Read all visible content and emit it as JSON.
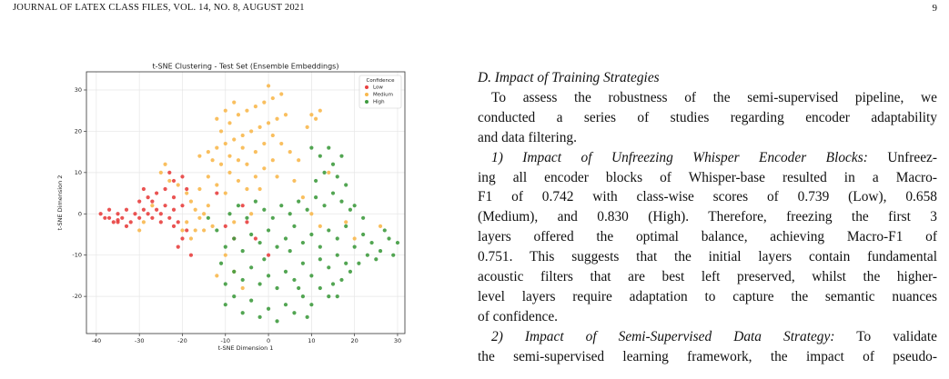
{
  "header": {
    "journal": "JOURNAL OF LATEX CLASS FILES, VOL. 14, NO. 8, AUGUST 2021",
    "page_number": "9"
  },
  "chart_data": {
    "type": "scatter",
    "title": "t-SNE Clustering - Test Set (Ensemble Embeddings)",
    "x_label": "t-SNE Dimension 1",
    "y_label": "t-SNE Dimension 2",
    "xlim": [
      -42.3,
      31.7
    ],
    "ylim": [
      -29,
      34.4
    ],
    "xticks": [
      -40,
      -30,
      -20,
      -10,
      0,
      10,
      20,
      30
    ],
    "yticks": [
      -20,
      -10,
      0,
      10,
      20,
      30
    ],
    "grid": true,
    "legend_title": "Confidence",
    "legend_loc": "upper right",
    "series": [
      {
        "name": "Low",
        "color": "#e8403f",
        "x": [
          -39,
          -38,
          -37,
          -36,
          -35,
          -34,
          -33,
          -32,
          -31,
          -37,
          -35,
          -33,
          -30,
          -29,
          -28,
          -27,
          -26,
          -25,
          -24,
          -23,
          -22,
          -30,
          -28,
          -26,
          -24,
          -22,
          -20,
          -21,
          -19,
          -20,
          -22,
          -25,
          -29,
          -27,
          -23,
          -22,
          -20,
          -19,
          -18,
          -21,
          -12,
          -10,
          -8,
          -5,
          -3,
          0,
          -6,
          -35
        ],
        "values": [
          0,
          -1,
          1,
          -2,
          0,
          -1,
          1,
          -2,
          0,
          -1,
          -2,
          -3,
          -1,
          1,
          0,
          -1,
          1,
          0,
          2,
          -1,
          1,
          3,
          4,
          5,
          6,
          4,
          2,
          -2,
          -4,
          -6,
          -3,
          -2,
          6,
          3,
          10,
          8,
          9,
          6,
          -10,
          -8,
          5,
          -3,
          -6,
          -2,
          -6,
          -10,
          2,
          -1.5
        ]
      },
      {
        "name": "Medium",
        "color": "#f8b84e",
        "x": [
          -25,
          -24,
          -23,
          -21,
          -19,
          -18,
          -17,
          -16,
          -17,
          -19,
          -20,
          -18,
          -15,
          -14,
          -16,
          -13,
          -27,
          -29,
          -30,
          -16,
          -14,
          -12,
          -10,
          -8,
          -6,
          -4,
          -2,
          0,
          2,
          4,
          -11,
          -9,
          -7,
          -5,
          -3,
          -1,
          1,
          3,
          0,
          -8,
          -10,
          -12,
          -13,
          -11,
          -9,
          -7,
          -5,
          -3,
          -1,
          1,
          3,
          5,
          7,
          -9,
          -7,
          -5,
          -3,
          -1,
          1,
          -14,
          -12,
          -10,
          9,
          10,
          11,
          12,
          -2,
          6,
          8,
          10,
          12,
          -10,
          -8,
          -12,
          -6,
          18,
          20,
          26,
          -4,
          14,
          -6,
          2,
          -15,
          -8
        ],
        "values": [
          10,
          12,
          8,
          7,
          5,
          3,
          1,
          -1,
          -4,
          -2,
          -4,
          -6,
          0,
          2,
          6,
          -3,
          2,
          -2,
          -4,
          14,
          15,
          16,
          17,
          18,
          19,
          20,
          21,
          22,
          23,
          24,
          20,
          22,
          24,
          25,
          26,
          27,
          28,
          29,
          31,
          27,
          25,
          23,
          13,
          12,
          14,
          13,
          12,
          15,
          17,
          19,
          17,
          15,
          13,
          10,
          8,
          6,
          9,
          11,
          13,
          9,
          7,
          5,
          21,
          24,
          23,
          25,
          6,
          8,
          4,
          0,
          -3,
          -10,
          -14,
          -15,
          -18,
          -2,
          -6,
          -3,
          0,
          10,
          16,
          9,
          -4,
          -2
        ]
      },
      {
        "name": "High",
        "color": "#3f9b3f",
        "x": [
          -10,
          -8,
          -6,
          -4,
          -2,
          0,
          2,
          4,
          6,
          8,
          10,
          12,
          14,
          -10,
          -8,
          -6,
          -4,
          -2,
          0,
          2,
          4,
          6,
          8,
          10,
          12,
          14,
          16,
          18,
          -10,
          -8,
          -6,
          -4,
          -2,
          0,
          2,
          4,
          6,
          8,
          10,
          12,
          14,
          16,
          18,
          20,
          22,
          24,
          26,
          28,
          30,
          29,
          27,
          25,
          23,
          21,
          19,
          17,
          15,
          -9,
          -7,
          -5,
          -3,
          -1,
          1,
          3,
          5,
          7,
          9,
          11,
          13,
          15,
          17,
          19,
          11,
          13,
          15,
          17,
          10,
          12,
          14,
          16,
          18,
          9,
          -12,
          -14,
          -11,
          20,
          22,
          7,
          -1,
          5,
          16
        ],
        "values": [
          -22,
          -20,
          -24,
          -21,
          -25,
          -23,
          -26,
          -22,
          -24,
          -20,
          -22,
          -18,
          -20,
          -17,
          -14,
          -16,
          -13,
          -17,
          -15,
          -18,
          -14,
          -16,
          -12,
          -15,
          -11,
          -13,
          -10,
          -12,
          -8,
          -6,
          -9,
          -5,
          -7,
          -4,
          -8,
          -6,
          -3,
          -7,
          -5,
          -8,
          -4,
          -6,
          -3,
          -8,
          -5,
          -7,
          -9,
          -6,
          -7,
          -10,
          -4,
          -11,
          -10,
          -12,
          -14,
          -16,
          -17,
          0,
          2,
          -1,
          3,
          1,
          -1,
          2,
          0,
          3,
          1,
          4,
          2,
          5,
          3,
          1,
          8,
          10,
          12,
          14,
          16,
          14,
          16,
          9,
          7,
          -25,
          -4,
          -1,
          -12,
          2,
          -1,
          -18,
          -11,
          -9,
          -20
        ]
      }
    ]
  },
  "section": {
    "heading": "D. Impact of Training Strategies",
    "paragraphs": [
      {
        "lines": [
          "To assess the robustness of the semi-supervised pipeline, we",
          "conducted a series of studies regarding encoder adaptability",
          "and data filtering."
        ]
      },
      {
        "heading": "1) Impact of Unfreezing Whisper Encoder Blocks:",
        "lines": [
          "Unfreez-",
          "ing all encoder blocks of Whisper-base resulted in a Macro-",
          "F1 of 0.742 with class-wise scores of 0.739 (Low), 0.658",
          "(Medium), and 0.830 (High). Therefore, freezing the first 3",
          "layers offered the optimal balance, achieving Macro-F1 of",
          "0.751. This suggests that the initial layers contain fundamental",
          "acoustic filters that are best left preserved, whilst the higher-",
          "level layers require adaptation to capture the semantic nuances",
          "of confidence."
        ]
      },
      {
        "heading": "2) Impact of Semi-Supervised Data Strategy:",
        "lines": [
          "To validate",
          "the semi-supervised learning framework, the impact of pseudo-"
        ],
        "continues": true
      }
    ]
  }
}
